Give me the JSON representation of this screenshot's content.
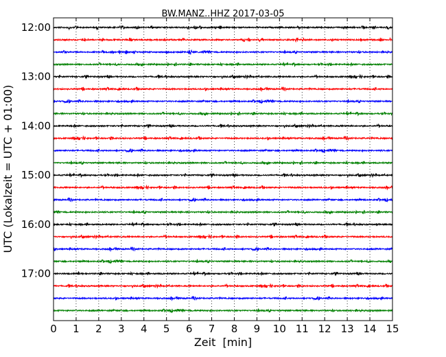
{
  "chart_data": {
    "type": "line",
    "title": "BW.MANZ..HHZ 2017-03-05",
    "xlabel": "Zeit  [min]",
    "ylabel": "UTC (Lokalzeit = UTC + 01:00)",
    "xlim": [
      0,
      15
    ],
    "x_ticks": [
      "0",
      "1",
      "2",
      "3",
      "4",
      "5",
      "6",
      "7",
      "8",
      "9",
      "10",
      "11",
      "12",
      "13",
      "14",
      "15"
    ],
    "y_ticks": [
      "12:00",
      "13:00",
      "14:00",
      "15:00",
      "16:00",
      "17:00"
    ],
    "y_tick_times": [
      "12:00",
      "13:00",
      "14:00",
      "15:00",
      "16:00",
      "17:00"
    ],
    "grid": "vertical dotted lines at each minute",
    "colors": [
      "#000000",
      "#ff0000",
      "#0000ff",
      "#008000"
    ],
    "traces": [
      {
        "start": "12:00",
        "color": "#000000"
      },
      {
        "start": "12:15",
        "color": "#ff0000"
      },
      {
        "start": "12:30",
        "color": "#0000ff"
      },
      {
        "start": "12:45",
        "color": "#008000"
      },
      {
        "start": "13:00",
        "color": "#000000"
      },
      {
        "start": "13:15",
        "color": "#ff0000"
      },
      {
        "start": "13:30",
        "color": "#0000ff"
      },
      {
        "start": "13:45",
        "color": "#008000"
      },
      {
        "start": "14:00",
        "color": "#000000"
      },
      {
        "start": "14:15",
        "color": "#ff0000"
      },
      {
        "start": "14:30",
        "color": "#0000ff"
      },
      {
        "start": "14:45",
        "color": "#008000"
      },
      {
        "start": "15:00",
        "color": "#000000"
      },
      {
        "start": "15:15",
        "color": "#ff0000"
      },
      {
        "start": "15:30",
        "color": "#0000ff"
      },
      {
        "start": "15:45",
        "color": "#008000"
      },
      {
        "start": "16:00",
        "color": "#000000"
      },
      {
        "start": "16:15",
        "color": "#ff0000"
      },
      {
        "start": "16:30",
        "color": "#0000ff"
      },
      {
        "start": "16:45",
        "color": "#008000"
      },
      {
        "start": "17:00",
        "color": "#000000"
      },
      {
        "start": "17:15",
        "color": "#ff0000"
      },
      {
        "start": "17:30",
        "color": "#0000ff"
      },
      {
        "start": "17:45",
        "color": "#008000"
      }
    ]
  }
}
